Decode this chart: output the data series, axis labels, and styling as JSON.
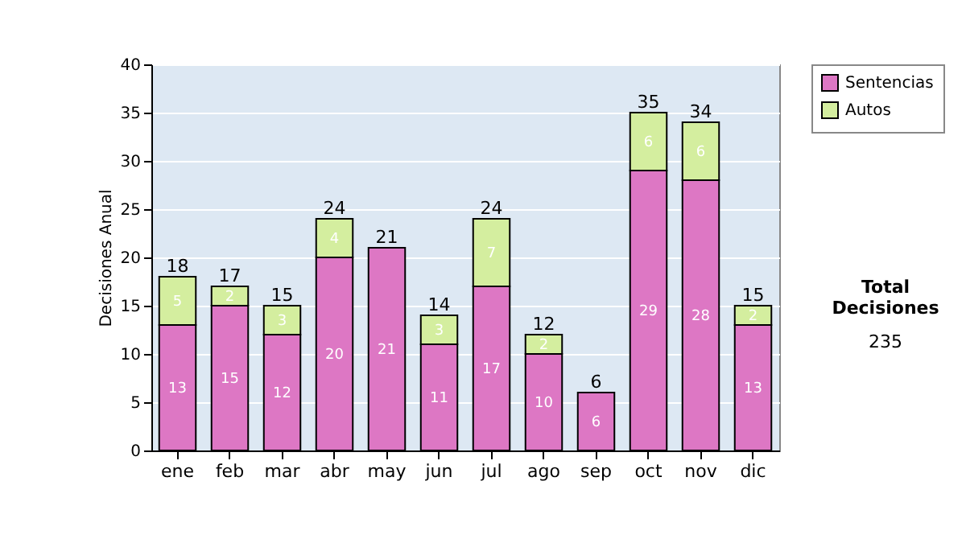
{
  "chart_data": {
    "type": "bar",
    "stacked": true,
    "ylabel": "Decisiones Anual",
    "categories": [
      "ene",
      "feb",
      "mar",
      "abr",
      "may",
      "jun",
      "jul",
      "ago",
      "sep",
      "oct",
      "nov",
      "dic"
    ],
    "series": [
      {
        "name": "Sentencias",
        "color": "#dd77c4",
        "values": [
          13,
          15,
          12,
          20,
          21,
          11,
          17,
          10,
          6,
          29,
          28,
          13
        ],
        "value_labels": [
          "13",
          "15",
          "12",
          "20",
          "21",
          "11",
          "17",
          "10",
          "6",
          "29",
          "28",
          "13"
        ]
      },
      {
        "name": "Autos",
        "color": "#d4ee9f",
        "values": [
          5,
          2,
          3,
          4,
          0,
          3,
          7,
          2,
          0,
          6,
          6,
          2
        ],
        "value_labels": [
          "5",
          "2",
          "3",
          "4",
          null,
          "3",
          "7",
          "2",
          null,
          "6",
          "6",
          "2"
        ]
      }
    ],
    "totals": [
      "18",
      "17",
      "15",
      "24",
      "21",
      "14",
      "24",
      "12",
      "6",
      "35",
      "34",
      "15"
    ],
    "ylim": [
      0,
      40
    ],
    "yticks": [
      0,
      5,
      10,
      15,
      20,
      25,
      30,
      35,
      40
    ],
    "grid": "y",
    "legend": "right",
    "annotations": [
      "Total Decisiones",
      "235"
    ]
  }
}
